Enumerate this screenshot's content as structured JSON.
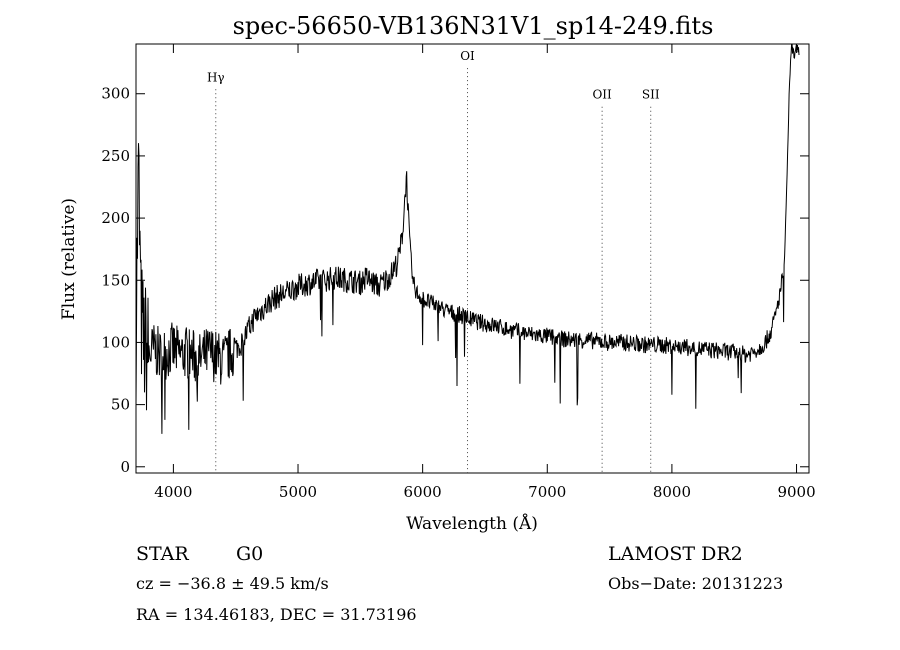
{
  "chart_data": {
    "type": "line",
    "title": "spec-56650-VB136N31V1_sp14-249.fits",
    "xlabel": "Wavelength (Å)",
    "ylabel": "Flux (relative)",
    "xlim": [
      3700,
      9100
    ],
    "ylim": [
      -5,
      340
    ],
    "xticks": [
      4000,
      5000,
      6000,
      7000,
      8000,
      9000
    ],
    "yticks": [
      0,
      50,
      100,
      150,
      200,
      250,
      300
    ],
    "grid": false,
    "line_color": "#000000",
    "series": [
      {
        "x": [
          3700,
          3720,
          3740,
          3760,
          3780,
          3800,
          3850,
          3900,
          3950,
          4000,
          4050,
          4100,
          4150,
          4200,
          4250,
          4300,
          4350,
          4400,
          4450,
          4500,
          4550,
          4600,
          4650,
          4700,
          4750,
          4800,
          4900,
          5000,
          5100,
          5200,
          5300,
          5400,
          5500,
          5550,
          5600,
          5650,
          5700,
          5750,
          5800,
          5820,
          5840,
          5850,
          5860,
          5870,
          5880,
          5890,
          5900,
          5920,
          5950,
          6000,
          6100,
          6200,
          6300,
          6400,
          6500,
          6600,
          6700,
          6800,
          6900,
          7000,
          7100,
          7200,
          7300,
          7400,
          7500,
          7600,
          7700,
          7800,
          7900,
          8000,
          8100,
          8200,
          8300,
          8400,
          8500,
          8600,
          8700,
          8750,
          8800,
          8850,
          8900,
          8920,
          8940,
          8960,
          8980,
          9000,
          9020
        ],
        "y": [
          105,
          240,
          120,
          100,
          95,
          90,
          95,
          88,
          92,
          95,
          90,
          92,
          90,
          85,
          90,
          92,
          88,
          85,
          90,
          95,
          100,
          110,
          120,
          125,
          130,
          135,
          140,
          145,
          148,
          150,
          152,
          150,
          148,
          152,
          148,
          145,
          150,
          155,
          165,
          175,
          190,
          205,
          220,
          235,
          215,
          190,
          175,
          150,
          140,
          135,
          130,
          125,
          122,
          118,
          115,
          113,
          110,
          108,
          106,
          105,
          103,
          102,
          102,
          101,
          100,
          100,
          99,
          98,
          98,
          97,
          96,
          95,
          94,
          93,
          92,
          90,
          95,
          100,
          110,
          130,
          160,
          220,
          300,
          340,
          330,
          340,
          335
        ]
      }
    ],
    "lines": [
      {
        "label": "Hγ",
        "x": 4340,
        "label_y": 310
      },
      {
        "label": "OI",
        "x": 6360,
        "label_y": 327
      },
      {
        "label": "OII",
        "x": 7440,
        "label_y": 296
      },
      {
        "label": "SII",
        "x": 7830,
        "label_y": 296
      }
    ]
  },
  "info": {
    "class": "STAR",
    "subclass": "G0",
    "survey": "LAMOST DR2",
    "cz": "cz = −36.8 ± 49.5 km/s",
    "obs_date": "Obs−Date: 20131223",
    "coords": "RA = 134.46183, DEC =  31.73196"
  }
}
